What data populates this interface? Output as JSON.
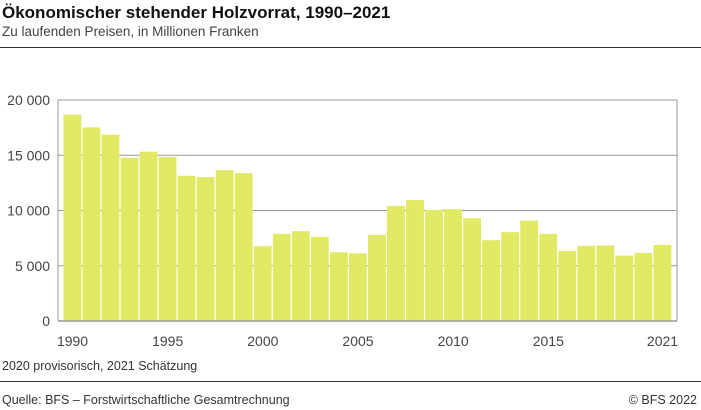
{
  "header": {
    "title": "Ökonomischer stehender Holzvorrat, 1990–2021",
    "subtitle": "Zu laufenden Preisen, in Millionen Franken"
  },
  "footer": {
    "note": "2020 provisorisch, 2021 Schätzung",
    "source": "Quelle: BFS – Forstwirtschaftliche Gesamtrechnung",
    "copyright": "© BFS 2022"
  },
  "chart_data": {
    "type": "bar",
    "title": "Ökonomischer stehender Holzvorrat, 1990–2021",
    "subtitle": "Zu laufenden Preisen, in Millionen Franken",
    "categories": [
      1990,
      1991,
      1992,
      1993,
      1994,
      1995,
      1996,
      1997,
      1998,
      1999,
      2000,
      2001,
      2002,
      2003,
      2004,
      2005,
      2006,
      2007,
      2008,
      2009,
      2010,
      2011,
      2012,
      2013,
      2014,
      2015,
      2016,
      2017,
      2018,
      2019,
      2020,
      2021
    ],
    "values": [
      18670,
      17520,
      16860,
      14770,
      15320,
      14830,
      13140,
      13020,
      13650,
      13380,
      6770,
      7890,
      8130,
      7610,
      6220,
      6130,
      7790,
      10420,
      10940,
      10060,
      10120,
      9300,
      7310,
      8040,
      9090,
      7890,
      6340,
      6800,
      6830,
      5920,
      6160,
      6890
    ],
    "ylim": [
      0,
      20000
    ],
    "yticks": [
      0,
      5000,
      10000,
      15000,
      20000
    ],
    "ytick_labels": [
      "0",
      "5 000",
      "10 000",
      "15 000",
      "20 000"
    ],
    "xtick_labels": [
      "1990",
      "1995",
      "2000",
      "2005",
      "2010",
      "2015",
      "2021"
    ],
    "xlabel": "",
    "ylabel": "",
    "grid": true,
    "bar_color": "#e1ea64"
  }
}
